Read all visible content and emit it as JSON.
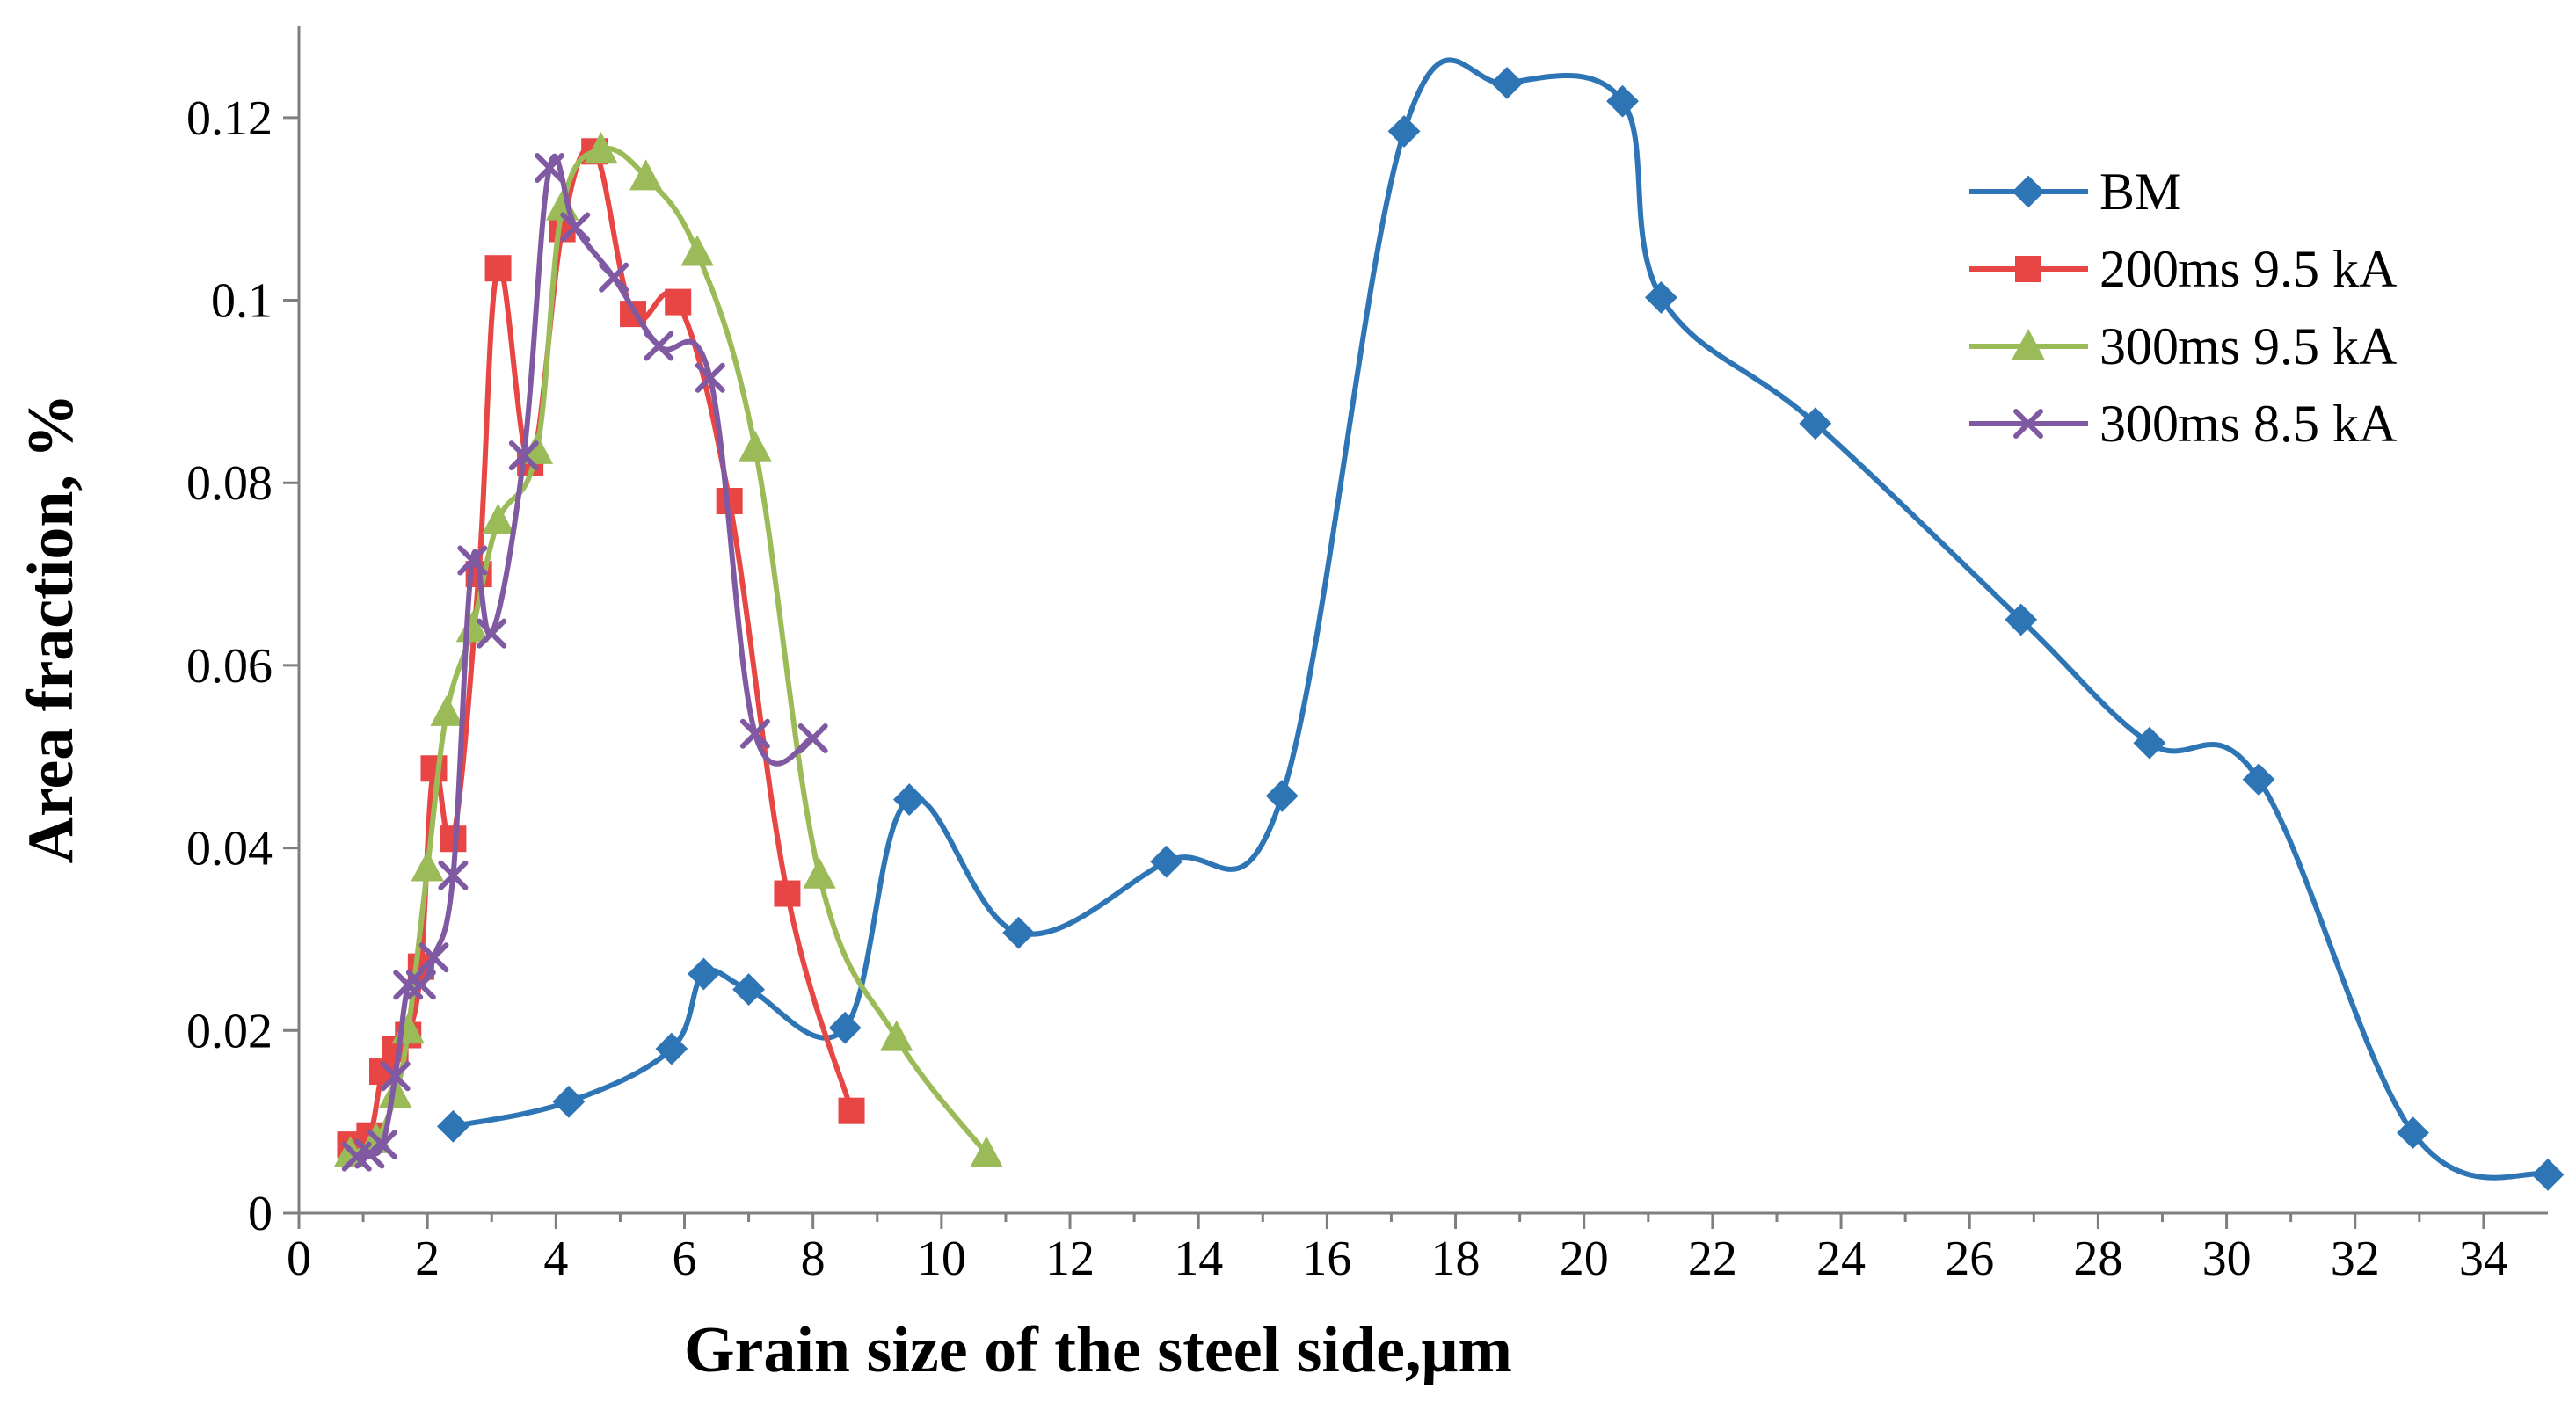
{
  "chart_data": {
    "type": "scatter",
    "title": "",
    "xlabel": "Grain size of the steel side,μm",
    "ylabel": "Area fraction, %",
    "xlim": [
      0,
      35
    ],
    "ylim": [
      0,
      0.13
    ],
    "x_ticks": [
      0,
      2,
      4,
      6,
      8,
      10,
      12,
      14,
      16,
      18,
      20,
      22,
      24,
      26,
      28,
      30,
      32,
      34
    ],
    "x_tick_labels": [
      "0",
      "2",
      "4",
      "6",
      "8",
      "10",
      "12",
      "14",
      "16",
      "18",
      "20",
      "22",
      "24",
      "26",
      "28",
      "30",
      "32",
      "34"
    ],
    "y_ticks": [
      0,
      0.02,
      0.04,
      0.06,
      0.08,
      0.1,
      0.12
    ],
    "y_tick_labels": [
      "0",
      "0.02",
      "0.04",
      "0.06",
      "0.08",
      "0.1",
      "0.12"
    ],
    "grid": false,
    "legend_position": "top-right",
    "smooth_lines": true,
    "series": [
      {
        "name": "BM",
        "color": "#2e75b6",
        "marker": "diamond",
        "x": [
          2.4,
          4.2,
          5.8,
          6.3,
          7.0,
          8.5,
          9.5,
          11.2,
          13.5,
          15.3,
          17.2,
          18.8,
          20.6,
          21.2,
          23.6,
          26.8,
          28.8,
          30.5,
          32.9,
          35.0
        ],
        "y": [
          0.0095,
          0.0122,
          0.018,
          0.0262,
          0.0245,
          0.0203,
          0.0453,
          0.0307,
          0.0385,
          0.0457,
          0.1185,
          0.1238,
          0.1218,
          0.1003,
          0.0865,
          0.065,
          0.0515,
          0.0475,
          0.0088,
          0.0042
        ]
      },
      {
        "name": "200ms 9.5 kA",
        "color": "#e84545",
        "marker": "square",
        "x": [
          0.8,
          1.1,
          1.3,
          1.5,
          1.7,
          1.9,
          2.1,
          2.4,
          2.8,
          3.1,
          3.6,
          4.1,
          4.6,
          5.2,
          5.9,
          6.7,
          7.6,
          8.6
        ],
        "y": [
          0.0075,
          0.0085,
          0.0155,
          0.018,
          0.0195,
          0.027,
          0.0487,
          0.041,
          0.07,
          0.1035,
          0.0822,
          0.1078,
          0.1163,
          0.0985,
          0.0998,
          0.078,
          0.035,
          0.0112
        ]
      },
      {
        "name": "300ms 9.5 kA",
        "color": "#9bbb59",
        "marker": "triangle",
        "x": [
          0.8,
          1.2,
          1.5,
          1.7,
          2.0,
          2.3,
          2.7,
          3.1,
          3.7,
          4.1,
          4.7,
          5.4,
          6.2,
          7.1,
          8.1,
          9.3,
          10.7
        ],
        "y": [
          0.0065,
          0.008,
          0.013,
          0.02,
          0.0378,
          0.0548,
          0.064,
          0.0758,
          0.0835,
          0.1102,
          0.1165,
          0.1135,
          0.1052,
          0.0838,
          0.037,
          0.0192,
          0.0065
        ]
      },
      {
        "name": "300ms 8.5 kA",
        "color": "#7f5aa2",
        "marker": "x",
        "x": [
          0.9,
          1.1,
          1.3,
          1.5,
          1.7,
          1.9,
          2.1,
          2.4,
          2.7,
          3.0,
          3.5,
          3.9,
          4.3,
          4.9,
          5.6,
          6.4,
          7.1,
          8.0
        ],
        "y": [
          0.0062,
          0.0065,
          0.0075,
          0.015,
          0.025,
          0.025,
          0.028,
          0.037,
          0.0715,
          0.0635,
          0.083,
          0.1145,
          0.108,
          0.1025,
          0.095,
          0.0915,
          0.0525,
          0.052
        ]
      }
    ]
  }
}
